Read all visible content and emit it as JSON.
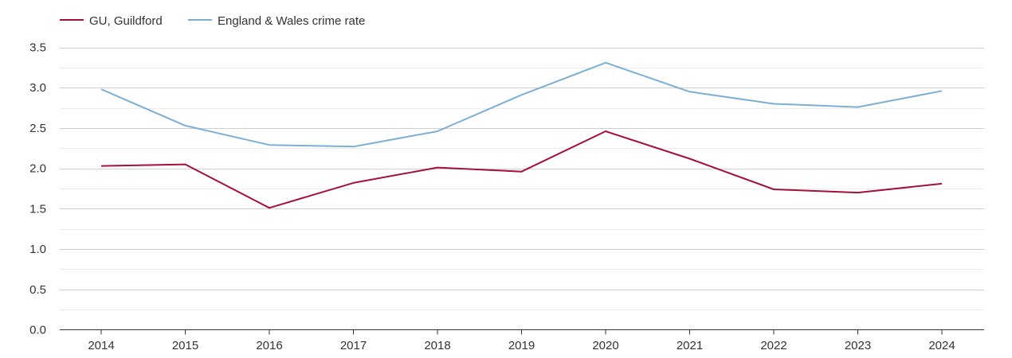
{
  "chart_data": {
    "type": "line",
    "title": "",
    "xlabel": "",
    "ylabel": "",
    "categories": [
      "2014",
      "2015",
      "2016",
      "2017",
      "2018",
      "2019",
      "2020",
      "2021",
      "2022",
      "2023",
      "2024"
    ],
    "ylim": [
      0,
      3.5
    ],
    "yticks": [
      "0.0",
      "0.5",
      "1.0",
      "1.5",
      "2.0",
      "2.5",
      "3.0",
      "3.5"
    ],
    "grid": true,
    "legend_position": "top-left",
    "series": [
      {
        "name": "GU, Guildford",
        "color": "#a50f3a",
        "values": [
          2.03,
          2.05,
          1.51,
          1.82,
          2.01,
          1.96,
          2.46,
          2.12,
          1.74,
          1.7,
          1.81
        ]
      },
      {
        "name": "England & Wales crime rate",
        "color": "#7bafd4",
        "values": [
          2.98,
          2.53,
          2.29,
          2.27,
          2.46,
          2.91,
          3.31,
          2.95,
          2.8,
          2.76,
          2.96
        ]
      }
    ]
  }
}
